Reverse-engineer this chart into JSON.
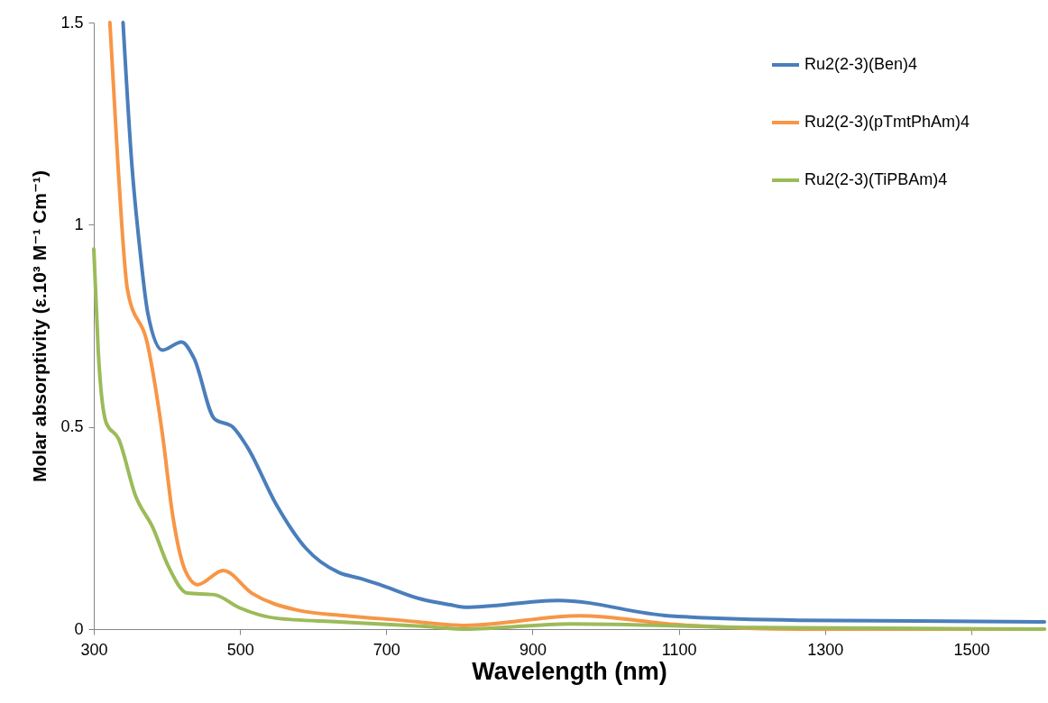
{
  "chart_data": {
    "type": "line",
    "xlabel": "Wavelength (nm)",
    "ylabel": "Molar absorptivity (ε.10³ M⁻¹ Cm⁻¹)",
    "xlim": [
      300,
      1600
    ],
    "xticks": [
      300,
      500,
      700,
      900,
      1100,
      1300,
      1500
    ],
    "ylim": [
      0,
      1.5
    ],
    "yticks": [
      0,
      0.5,
      1,
      1.5
    ],
    "grid": false,
    "legend": "top right",
    "marker": "none",
    "line_style": "solid",
    "series": [
      {
        "name": "Ru2(2-3)(Ben)4",
        "color": "#4a7ebb",
        "x": [
          340,
          352,
          363,
          374,
          394,
          420,
          437,
          465,
          490,
          510,
          549,
          590,
          635,
          665,
          691,
          748,
          788,
          808,
          935,
          1085,
          1264,
          1600
        ],
        "values": [
          1.5,
          1.15,
          0.94,
          0.78,
          0.69,
          0.71,
          0.67,
          0.52,
          0.5,
          0.45,
          0.31,
          0.2,
          0.14,
          0.125,
          0.11,
          0.074,
          0.06,
          0.054,
          0.071,
          0.033,
          0.022,
          0.018
        ]
      },
      {
        "name": "Ru2(2-3)(pTmtPhAm)4",
        "color": "#f79646",
        "x": [
          322,
          333,
          346,
          374,
          394,
          408,
          425,
          442,
          477,
          516,
          578,
          645,
          719,
          808,
          965,
          1098,
          1264,
          1600
        ],
        "values": [
          1.5,
          1.15,
          0.84,
          0.7,
          0.48,
          0.28,
          0.145,
          0.11,
          0.145,
          0.089,
          0.047,
          0.033,
          0.022,
          0.009,
          0.033,
          0.011,
          0,
          0
        ]
      },
      {
        "name": "Ru2(2-3)(TiPBAm)4",
        "color": "#9bbb59",
        "x": [
          300,
          306,
          317,
          334,
          357,
          381,
          402,
          428,
          465,
          499,
          549,
          635,
          748,
          808,
          952,
          1200,
          1600
        ],
        "values": [
          0.94,
          0.69,
          0.51,
          0.47,
          0.33,
          0.25,
          0.155,
          0.089,
          0.085,
          0.053,
          0.027,
          0.018,
          0.007,
          0,
          0.013,
          0.004,
          0
        ]
      }
    ]
  }
}
